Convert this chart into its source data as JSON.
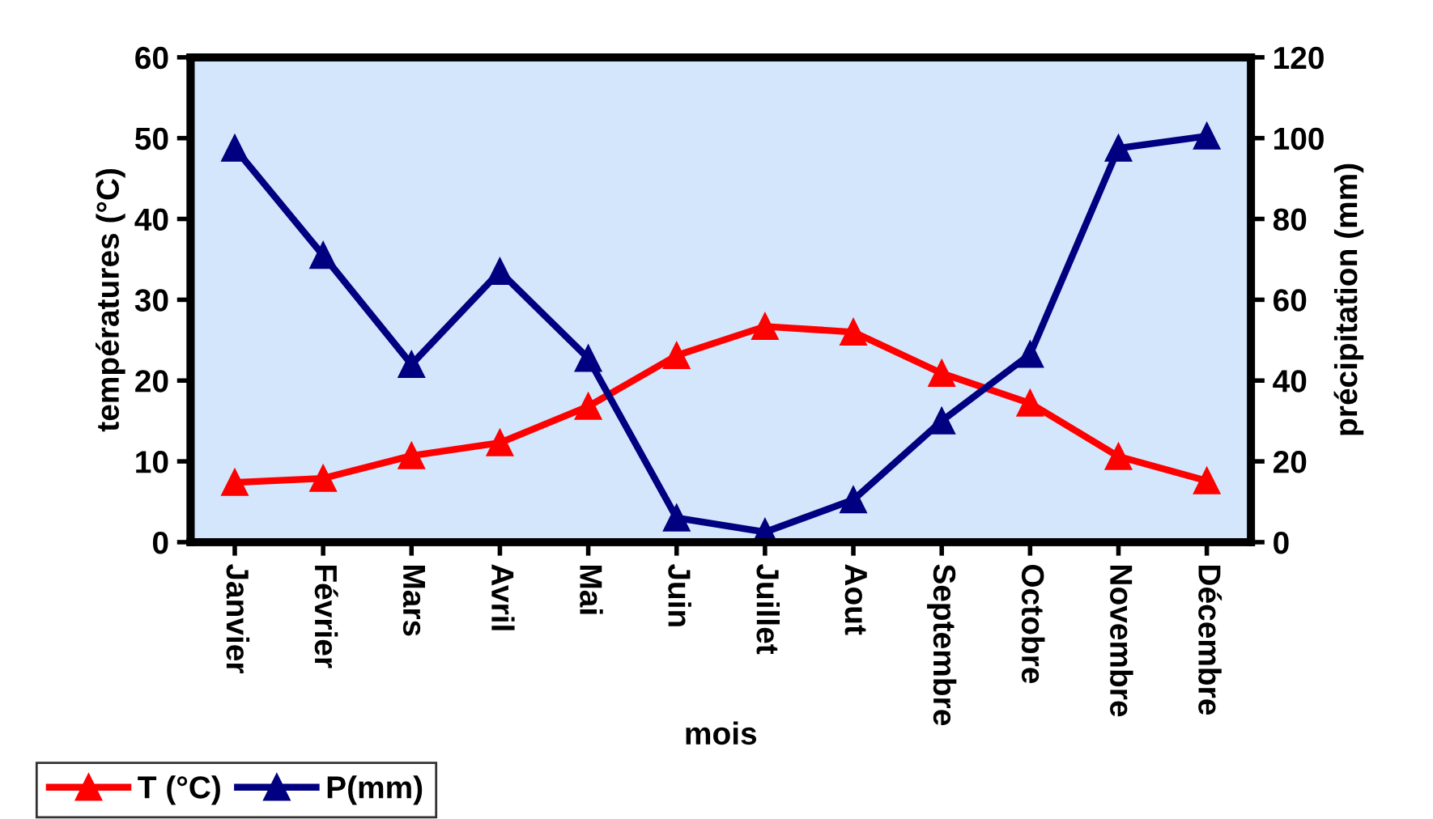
{
  "chart_data": {
    "type": "line",
    "xlabel": "mois",
    "ylabel": "températures (°C)",
    "y2label": "précipitation (mm)",
    "categories": [
      "Janvier",
      "Février",
      "Mars",
      "Avril",
      "Mai",
      "Juin",
      "Juillet",
      "Aout",
      "Septembre",
      "Octobre",
      "Novembre",
      "Décembre"
    ],
    "series": [
      {
        "name": "T (°C)",
        "color": "#ff0000",
        "values": [
          7.4,
          7.9,
          10.7,
          12.3,
          16.8,
          23.1,
          26.7,
          26.0,
          20.9,
          17.2,
          10.6,
          7.6
        ]
      },
      {
        "name": "P(mm)",
        "color": "#000080",
        "axis": "y2",
        "values": [
          97.5,
          71,
          44,
          67,
          45.5,
          6,
          2.5,
          10.5,
          30,
          46.5,
          97.5,
          100.5
        ]
      }
    ],
    "ylim": [
      0,
      60
    ],
    "yticks": [
      0,
      10,
      20,
      30,
      40,
      50,
      60
    ],
    "y2lim": [
      0,
      120
    ],
    "y2ticks": [
      0,
      20,
      40,
      60,
      80,
      100,
      120
    ],
    "marker": "triangle",
    "line_style": "solid",
    "grid": false,
    "legend": "bottom left"
  }
}
